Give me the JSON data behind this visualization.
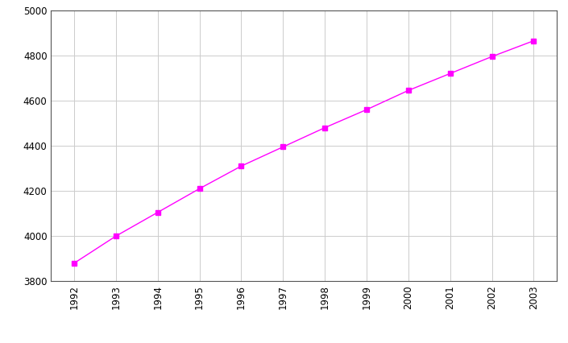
{
  "years": [
    1992,
    1993,
    1994,
    1995,
    1996,
    1997,
    1998,
    1999,
    2000,
    2001,
    2002,
    2003
  ],
  "values": [
    3880,
    4000,
    4105,
    4210,
    4310,
    4395,
    4480,
    4560,
    4645,
    4720,
    4795,
    4865
  ],
  "line_color": "#ff00ff",
  "marker": "s",
  "marker_size": 4,
  "ylim": [
    3800,
    5000
  ],
  "yticks": [
    3800,
    4000,
    4200,
    4400,
    4600,
    4800,
    5000
  ],
  "xticks": [
    1992,
    1993,
    1994,
    1995,
    1996,
    1997,
    1998,
    1999,
    2000,
    2001,
    2002,
    2003
  ],
  "grid_color": "#cccccc",
  "background_color": "#ffffff",
  "spine_color": "#555555"
}
